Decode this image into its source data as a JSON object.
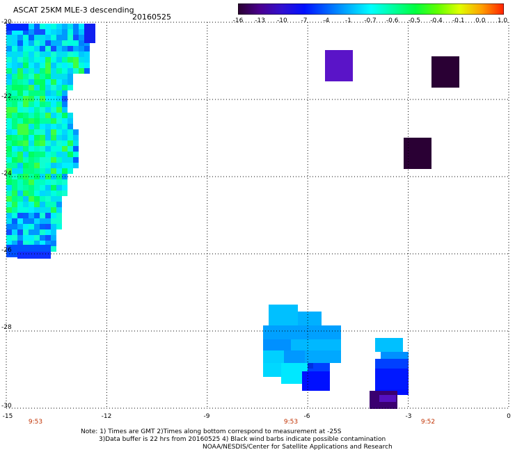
{
  "header": {
    "title": "ASCAT 25KM MLE-3 descending",
    "date": "20160525"
  },
  "colorbar": {
    "labels": [
      "-16",
      "-13",
      "-10",
      "-7",
      "-4",
      "-1",
      "-0.7",
      "-0.6",
      "-0.5",
      "-0.4",
      "-0.1",
      "0.0",
      "1.0"
    ],
    "colors": [
      "#2a0030",
      "#4a0090",
      "#3010d0",
      "#0010ff",
      "#0060ff",
      "#00b0ff",
      "#00ffff",
      "#00ffa0",
      "#00ff40",
      "#60ff00",
      "#e0ff00",
      "#ffa000",
      "#ff2000"
    ]
  },
  "axes": {
    "y_ticks": [
      "-20",
      "-22",
      "-24",
      "-26",
      "-28",
      "-30"
    ],
    "x_ticks": [
      "-15",
      "-12",
      "-9",
      "-6",
      "-3",
      "0"
    ],
    "xlim": [
      -15,
      0
    ],
    "ylim": [
      -30,
      -20
    ],
    "grid": "dotted"
  },
  "times": [
    {
      "label": "9:53",
      "lon": -15
    },
    {
      "label": "9:53",
      "lon": -6
    },
    {
      "label": "9:52",
      "lon": -3
    }
  ],
  "notes": {
    "line1": "Note: 1) Times are GMT 2)Times along bottom correspond to measurement at -25S",
    "line2": "3)Data buffer is 22 hrs from 20160525 4) Black wind barbs indicate possible contamination",
    "line3": "NOAA/NESDIS/Center for Satellite Applications and Research"
  }
}
